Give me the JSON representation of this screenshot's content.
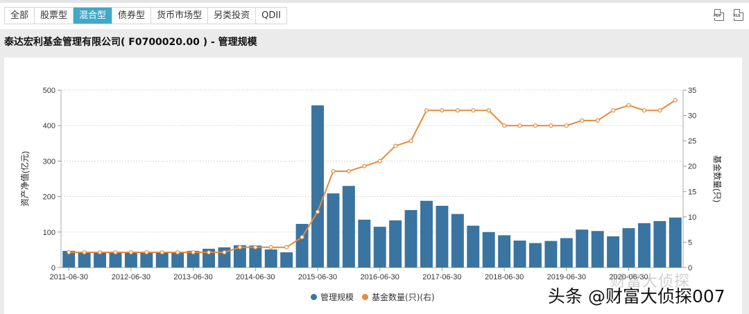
{
  "tabs": [
    {
      "label": "全部",
      "active": false
    },
    {
      "label": "股票型",
      "active": false
    },
    {
      "label": "混合型",
      "active": true
    },
    {
      "label": "债券型",
      "active": false
    },
    {
      "label": "货币市场型",
      "active": false
    },
    {
      "label": "另类投资",
      "active": false
    },
    {
      "label": "QDII",
      "active": false
    }
  ],
  "export": {
    "pdf_label": "PDF",
    "xls_label": "XLS"
  },
  "page_title": "泰达宏利基金管理有限公司( F0700020.00 ) - 管理规模",
  "colors": {
    "bar": "#3a74a0",
    "line": "#e38b3c",
    "active_tab": "#43a7c8"
  },
  "legend": {
    "bar_label": "管理规模",
    "line_label": "基金数量(只)(右)"
  },
  "watermark": {
    "main": "头条 @财富大侦探007",
    "faint": "财富大侦探"
  },
  "chart_data": {
    "type": "bar+line",
    "title": "泰达宏利基金管理有限公司( F0700020.00 ) - 管理规模",
    "xlabel": "",
    "ylabel": "资产净值(亿元)",
    "y2label": "基金数量(只)",
    "ylim": [
      0,
      500
    ],
    "y2lim": [
      0,
      35
    ],
    "yticks": [
      0,
      100,
      200,
      300,
      400,
      500
    ],
    "y2ticks": [
      0,
      5,
      10,
      15,
      20,
      25,
      30,
      35
    ],
    "xtick_labels": [
      "2011-06-30",
      "2012-06-30",
      "2013-06-30",
      "2014-06-30",
      "2015-06-30",
      "2016-06-30",
      "2017-06-30",
      "2018-06-30",
      "2019-06-30",
      "2020-06-30"
    ],
    "grid": true,
    "legend_position": "bottom",
    "categories": [
      "2011-06-30",
      "2011-09-30",
      "2011-12-31",
      "2012-03-31",
      "2012-06-30",
      "2012-09-30",
      "2012-12-31",
      "2013-03-31",
      "2013-06-30",
      "2013-09-30",
      "2013-12-31",
      "2014-03-31",
      "2014-06-30",
      "2014-09-30",
      "2014-12-31",
      "2015-03-31",
      "2015-06-30",
      "2015-09-30",
      "2015-12-31",
      "2016-03-31",
      "2016-06-30",
      "2016-09-30",
      "2016-12-31",
      "2017-03-31",
      "2017-06-30",
      "2017-09-30",
      "2017-12-31",
      "2018-03-31",
      "2018-06-30",
      "2018-09-30",
      "2018-12-31",
      "2019-03-31",
      "2019-06-30",
      "2019-09-30",
      "2019-12-31",
      "2020-03-31",
      "2020-06-30",
      "2020-09-30",
      "2020-12-31",
      "2021-03-31"
    ],
    "series": [
      {
        "name": "管理规模",
        "type": "bar",
        "axis": "left",
        "values": [
          47,
          41,
          41,
          41,
          41,
          41,
          41,
          41,
          47,
          53,
          57,
          63,
          62,
          51,
          43,
          123,
          457,
          209,
          230,
          135,
          115,
          133,
          162,
          188,
          174,
          151,
          118,
          100,
          91,
          76,
          69,
          75,
          83,
          107,
          103,
          88,
          111,
          125,
          131,
          141
        ]
      },
      {
        "name": "基金数量(只)(右)",
        "type": "line",
        "axis": "right",
        "values": [
          3,
          3,
          3,
          3,
          3,
          3,
          3,
          3,
          3,
          3,
          3,
          4,
          4,
          4,
          4,
          6,
          11,
          19,
          19,
          20,
          21,
          24,
          25,
          31,
          31,
          31,
          31,
          31,
          28,
          28,
          28,
          28,
          28,
          29,
          29,
          31,
          32,
          31,
          31,
          33
        ]
      }
    ]
  }
}
